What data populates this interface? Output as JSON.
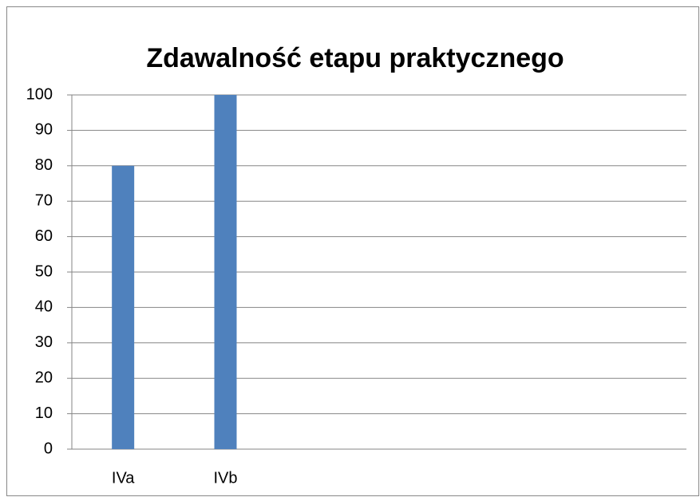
{
  "chart_data": {
    "type": "bar",
    "title": "Zdawalność etapu praktycznego",
    "categories": [
      "IVa",
      "IVb",
      null,
      null,
      null,
      null
    ],
    "values": [
      80,
      100,
      null,
      null,
      null,
      null
    ],
    "color": "#4f81bd",
    "ylim": [
      0,
      100
    ],
    "yticks": [
      0,
      10,
      20,
      30,
      40,
      50,
      60,
      70,
      80,
      90,
      100
    ],
    "grid": true
  }
}
